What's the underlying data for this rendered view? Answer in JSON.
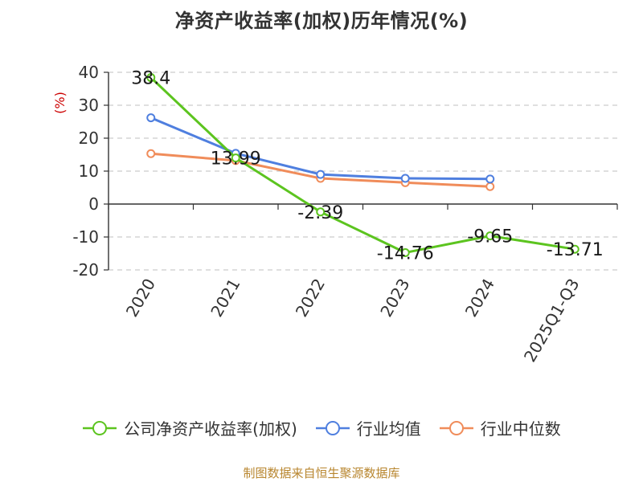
{
  "chart_data": {
    "type": "line",
    "title": "净资产收益率(加权)历年情况(%)",
    "ylabel": "(%)",
    "xlabel": "",
    "ylim": [
      -20,
      40
    ],
    "yticks": [
      40,
      30,
      20,
      10,
      0,
      -10,
      -20
    ],
    "grid": true,
    "legend_position": "bottom",
    "categories": [
      "2020",
      "2021",
      "2022",
      "2023",
      "2024",
      "2025Q1-Q3"
    ],
    "series": [
      {
        "name": "公司净资产收益率(加权)",
        "color": "#5cc41f",
        "values": [
          38.4,
          13.99,
          -2.39,
          -14.76,
          -9.65,
          -13.71
        ],
        "labels": [
          "38.4",
          "13.99",
          "-2.39",
          "-14.76",
          "-9.65",
          "-13.71"
        ]
      },
      {
        "name": "行业均值",
        "color": "#4f7fdf",
        "values": [
          26.2,
          15.4,
          9.0,
          7.8,
          7.6,
          null
        ]
      },
      {
        "name": "行业中位数",
        "color": "#f08c5a",
        "values": [
          15.3,
          13.2,
          7.8,
          6.5,
          5.3,
          null
        ]
      }
    ]
  },
  "source": "制图数据来自恒生聚源数据库"
}
